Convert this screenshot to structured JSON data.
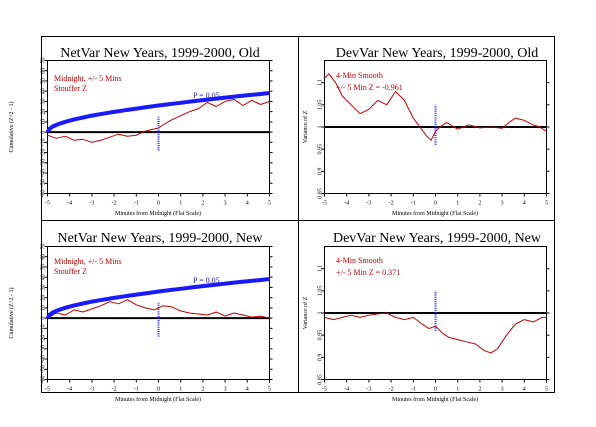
{
  "chart_data": [
    {
      "type": "line",
      "title": "NetVar New Years, 1999-2000, Old",
      "xlabel": "Minutes from Midnight (Flat Scale)",
      "ylabel": "Cumulative (Z^2 - 1)",
      "xlim": [
        -5,
        5
      ],
      "ylim": [
        -60,
        70
      ],
      "x_ticks": [
        -5,
        -4,
        -3,
        -2,
        -1,
        0,
        1,
        2,
        3,
        4,
        5
      ],
      "y_ticks": [
        -60,
        -50,
        -40,
        -30,
        -20,
        -10,
        0,
        10,
        20,
        30,
        40,
        50,
        60,
        70
      ],
      "y_tick_labels": [
        "-60",
        "-50",
        "-40",
        "-30",
        "-20",
        "-10",
        "0",
        "10",
        "20",
        "30",
        "40",
        "50",
        "60",
        "70"
      ],
      "annotations": [
        "Midnight, +/- 5 Mins",
        "Stouffer Z",
        "P = 0.05"
      ],
      "reference_line": 0,
      "marker_x": 0,
      "marker_range": [
        -18,
        15
      ],
      "series": [
        {
          "color": "#c00000",
          "x": [
            -5,
            -4.6,
            -4.2,
            -3.8,
            -3.4,
            -3,
            -2.6,
            -2.2,
            -1.8,
            -1.4,
            -1,
            -0.6,
            -0.2,
            0,
            0.2,
            0.6,
            1,
            1.4,
            1.8,
            2.2,
            2.6,
            3,
            3.4,
            3.8,
            4.2,
            4.6,
            5
          ],
          "y": [
            -3,
            -6,
            -4,
            -8,
            -7,
            -10,
            -8,
            -5,
            -2,
            -4,
            -3,
            1,
            3,
            4,
            7,
            12,
            16,
            20,
            23,
            29,
            25,
            30,
            32,
            26,
            31,
            27,
            30
          ]
        },
        {
          "name": "P = 0.05",
          "color": "#1a1aff",
          "x": [
            -5,
            -4.9,
            -4.75,
            -4.5,
            -4.2,
            -3.8,
            -3.4,
            -3,
            -2.5,
            -2,
            -1.5,
            -1,
            -0.5,
            0,
            0.5,
            1,
            1.5,
            2,
            2.5,
            3,
            3.5,
            4,
            4.5,
            5
          ],
          "y": [
            0,
            3.3,
            5.6,
            7.9,
            10.1,
            12.4,
            14.3,
            16.1,
            18.0,
            19.8,
            21.4,
            23.0,
            24.5,
            26.0,
            27.4,
            28.7,
            30.0,
            31.3,
            32.5,
            33.7,
            34.9,
            36.0,
            37.1,
            38.2
          ]
        }
      ]
    },
    {
      "type": "line",
      "title": "DevVar New Years, 1999-2000, Old",
      "xlabel": "Minutes from Midnight (Flat Scale)",
      "ylabel": "Variance of Z",
      "xlim": [
        -5,
        5
      ],
      "ylim": [
        0.85,
        1.15
      ],
      "x_ticks": [
        -5,
        -4,
        -3,
        -2,
        -1,
        0,
        1,
        2,
        3,
        4,
        5
      ],
      "y_ticks": [
        0.85,
        0.9,
        0.95,
        1.0,
        1.05,
        1.1
      ],
      "y_tick_labels": [
        "0.85",
        "0.9",
        "0.95",
        "1",
        "1.05",
        "1.1"
      ],
      "annotations": [
        "4-Min Smooth",
        "+/- 5 Min Z = -0.961"
      ],
      "reference_line": 1.0,
      "marker_x": 0,
      "marker_range": [
        0.96,
        1.05
      ],
      "series": [
        {
          "color": "#c00000",
          "x": [
            -5,
            -4.8,
            -4.5,
            -4.2,
            -3.8,
            -3.4,
            -3,
            -2.6,
            -2.2,
            -1.8,
            -1.4,
            -1,
            -0.7,
            -0.4,
            -0.2,
            0,
            0.2,
            0.5,
            1,
            1.5,
            2,
            2.5,
            3,
            3.3,
            3.6,
            4,
            4.4,
            4.7,
            5
          ],
          "y": [
            1.11,
            1.12,
            1.1,
            1.07,
            1.05,
            1.03,
            1.04,
            1.06,
            1.05,
            1.08,
            1.06,
            1.02,
            1.0,
            0.98,
            0.97,
            0.99,
            1.0,
            1.01,
            0.995,
            1.005,
            0.998,
            1.0,
            0.997,
            1.01,
            1.02,
            1.015,
            1.005,
            1.0,
            0.99
          ]
        }
      ]
    },
    {
      "type": "line",
      "title": "NetVar New Years, 1999-2000, New",
      "xlabel": "Minutes from Midnight (Flat Scale)",
      "ylabel": "Cumulative (Z^2 - 1)",
      "xlim": [
        -5,
        5
      ],
      "ylim": [
        -60,
        70
      ],
      "x_ticks": [
        -5,
        -4,
        -3,
        -2,
        -1,
        0,
        1,
        2,
        3,
        4,
        5
      ],
      "y_ticks": [
        -60,
        -50,
        -40,
        -30,
        -20,
        -10,
        0,
        10,
        20,
        30,
        40,
        50,
        60,
        70
      ],
      "y_tick_labels": [
        "-60",
        "-50",
        "-40",
        "-30",
        "-20",
        "-10",
        "0",
        "10",
        "20",
        "30",
        "40",
        "50",
        "60",
        "70"
      ],
      "annotations": [
        "Midnight, +/- 5 Mins",
        "Stouffer Z",
        "P = 0.05"
      ],
      "reference_line": 0,
      "marker_x": 0,
      "marker_range": [
        -18,
        15
      ],
      "series": [
        {
          "color": "#c00000",
          "x": [
            -5,
            -4.6,
            -4.2,
            -3.8,
            -3.4,
            -3,
            -2.6,
            -2.2,
            -1.8,
            -1.4,
            -1,
            -0.6,
            -0.2,
            0,
            0.2,
            0.6,
            1,
            1.4,
            1.8,
            2.2,
            2.6,
            3,
            3.4,
            3.8,
            4.2,
            4.6,
            5
          ],
          "y": [
            0,
            5,
            3,
            8,
            6,
            9,
            12,
            16,
            14,
            18,
            13,
            10,
            8,
            10,
            12,
            11,
            7,
            5,
            4,
            3,
            6,
            2,
            5,
            3,
            1,
            2,
            0
          ]
        },
        {
          "name": "P = 0.05",
          "color": "#1a1aff",
          "x": [
            -5,
            -4.9,
            -4.75,
            -4.5,
            -4.2,
            -3.8,
            -3.4,
            -3,
            -2.5,
            -2,
            -1.5,
            -1,
            -0.5,
            0,
            0.5,
            1,
            1.5,
            2,
            2.5,
            3,
            3.5,
            4,
            4.5,
            5
          ],
          "y": [
            0,
            3.3,
            5.6,
            7.9,
            10.1,
            12.4,
            14.3,
            16.1,
            18.0,
            19.8,
            21.4,
            23.0,
            24.5,
            26.0,
            27.4,
            28.7,
            30.0,
            31.3,
            32.5,
            33.7,
            34.9,
            36.0,
            37.1,
            38.2
          ]
        }
      ]
    },
    {
      "type": "line",
      "title": "DevVar New Years, 1999-2000, New",
      "xlabel": "Minutes from Midnight (Flat Scale)",
      "ylabel": "Variance of Z",
      "xlim": [
        -5,
        5
      ],
      "ylim": [
        0.85,
        1.15
      ],
      "x_ticks": [
        -5,
        -4,
        -3,
        -2,
        -1,
        0,
        1,
        2,
        3,
        4,
        5
      ],
      "y_ticks": [
        0.85,
        0.9,
        0.95,
        1.0,
        1.05,
        1.1
      ],
      "y_tick_labels": [
        "0.85",
        "0.9",
        "0.95",
        "1",
        "1.05",
        "1.1"
      ],
      "annotations": [
        "4-Min Smooth",
        "+/- 5 Min Z = 0.371"
      ],
      "reference_line": 1.0,
      "marker_x": 0,
      "marker_range": [
        0.96,
        1.05
      ],
      "series": [
        {
          "color": "#c00000",
          "x": [
            -5,
            -4.6,
            -4.2,
            -3.8,
            -3.4,
            -3,
            -2.6,
            -2.2,
            -1.8,
            -1.4,
            -1,
            -0.6,
            -0.3,
            0,
            0.3,
            0.6,
            1,
            1.4,
            1.8,
            2.2,
            2.5,
            2.8,
            3.2,
            3.6,
            4,
            4.4,
            4.8,
            5
          ],
          "y": [
            0.99,
            0.985,
            0.99,
            0.995,
            0.99,
            0.995,
            0.998,
            1.0,
            0.99,
            0.985,
            0.99,
            0.975,
            0.965,
            0.97,
            0.955,
            0.945,
            0.94,
            0.935,
            0.93,
            0.915,
            0.91,
            0.92,
            0.95,
            0.975,
            0.985,
            0.98,
            0.99,
            0.99
          ]
        }
      ]
    }
  ]
}
